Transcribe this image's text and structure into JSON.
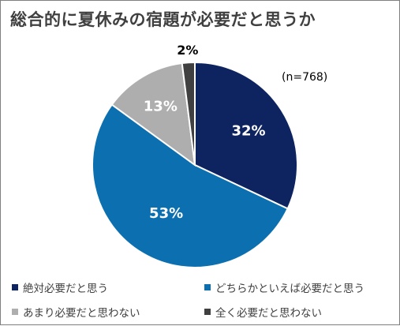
{
  "chart_data": {
    "type": "pie",
    "title": "総合的に夏休みの宿題が必要だと思うか",
    "annotation": "(n=768)",
    "legend_position": "bottom",
    "slices": [
      {
        "name": "絶対必要だと思う",
        "value": 32,
        "label": "32%",
        "color": "#0d2461",
        "label_color": "#ffffff"
      },
      {
        "name": "どちらかといえば必要だと思う",
        "value": 53,
        "label": "53%",
        "color": "#0b6fb0",
        "label_color": "#ffffff"
      },
      {
        "name": "あまり必要だと思わない",
        "value": 13,
        "label": "13%",
        "color": "#aeaeae",
        "label_color": "#ffffff"
      },
      {
        "name": "全く必要だと思わない",
        "value": 2,
        "label": "2%",
        "color": "#404040",
        "label_color": "#000000"
      }
    ]
  }
}
